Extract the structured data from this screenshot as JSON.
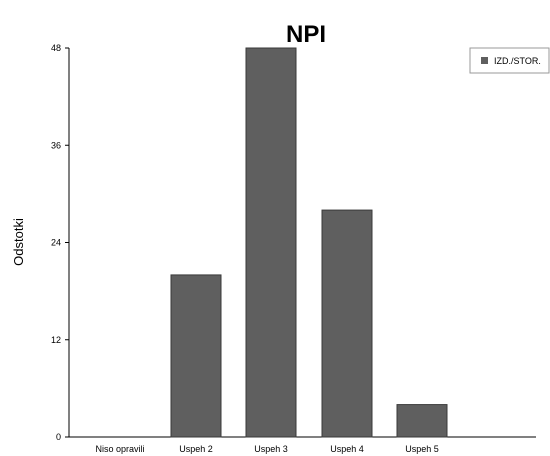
{
  "chart_data": {
    "type": "bar",
    "title": "NPI",
    "xlabel": "",
    "ylabel": "Odstotki",
    "categories": [
      "Niso opravili",
      "Uspeh 2",
      "Uspeh 3",
      "Uspeh 4",
      "Uspeh 5"
    ],
    "series": [
      {
        "name": "IZD./STOR.",
        "values": [
          0,
          20,
          48,
          28,
          4
        ]
      }
    ],
    "ylim": [
      0,
      48
    ],
    "yticks": [
      0,
      12,
      24,
      36,
      48
    ],
    "grid": false,
    "legend": "top-right",
    "colors": {
      "bar": "#5f5f5f",
      "bar_stroke": "#3a3a3a",
      "axis": "#000000"
    }
  }
}
